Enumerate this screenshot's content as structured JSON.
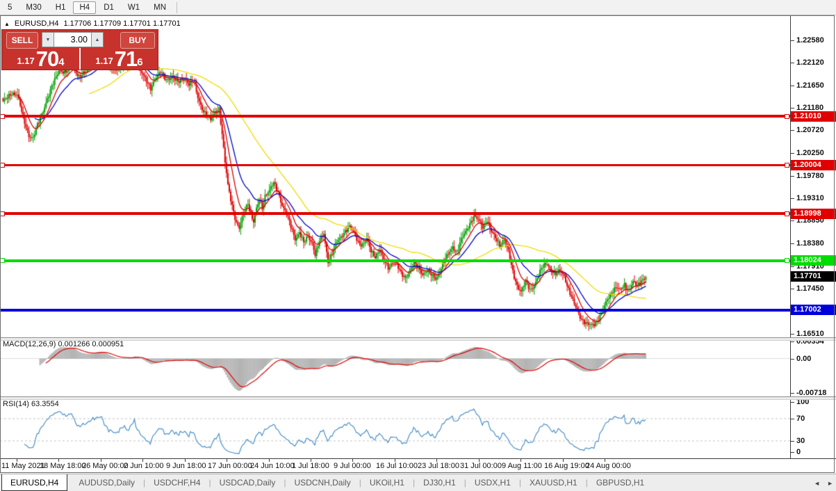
{
  "toolbar": {
    "timeframes": [
      "5",
      "M30",
      "H1",
      "H4",
      "D1",
      "W1",
      "MN"
    ],
    "active": "H4"
  },
  "chart_header": {
    "collapse_icon": "▲",
    "symbol": "EURUSD,H4",
    "ohlc": "1.17706 1.17709 1.17701 1.17701"
  },
  "trade_panel": {
    "sell_label": "SELL",
    "buy_label": "BUY",
    "volume": "3.00",
    "volume_down_icon": "▼",
    "volume_up_icon": "▲",
    "sell_small": "1.17",
    "sell_big": "70",
    "sell_sup": "4",
    "buy_small": "1.17",
    "buy_big": "71",
    "buy_sup": "6",
    "panel_color": "#c7322c"
  },
  "price_axis": {
    "ticks": [
      "1.22580",
      "1.22120",
      "1.21650",
      "1.21180",
      "1.20720",
      "1.20250",
      "1.19780",
      "1.19310",
      "1.18850",
      "1.18380",
      "1.17910",
      "1.17450",
      "1.16510"
    ]
  },
  "current_price": {
    "value": "1.17701",
    "bg": "#000000"
  },
  "time_axis": [
    "11 May 2021",
    "18 May 18:00",
    "26 May 00:00",
    "2 Jun 10:00",
    "9 Jun 18:00",
    "17 Jun 00:00",
    "24 Jun 10:00",
    "1 Jul 18:00",
    "9 Jul 00:00",
    "16 Jul 10:00",
    "23 Jul 18:00",
    "31 Jul 00:00",
    "9 Aug 11:00",
    "16 Aug 19:00",
    "24 Aug 00:00"
  ],
  "macd": {
    "label": "MACD(12,26,9) 0.001266 0.000951",
    "ticks": [
      "0.00354",
      "0.00",
      "-0.00718"
    ],
    "histogram_color": "#b4b4b4",
    "signal_color": "#e00000"
  },
  "rsi": {
    "label": "RSI(14) 63.3554",
    "ticks": [
      "100",
      "70",
      "30",
      "0"
    ],
    "levels": [
      70,
      30
    ],
    "line_color": "#4a90c8"
  },
  "tabs": {
    "items": [
      "EURUSD,H4",
      "AUDUSD,Daily",
      "USDCHF,H4",
      "USDCAD,Daily",
      "USDCNH,Daily",
      "UKOil,H1",
      "DJ30,H1",
      "USDX,H1",
      "XAUUSD,H1",
      "GBPUSD,H1"
    ],
    "active": "EURUSD,H4",
    "scroll_left": "◄",
    "scroll_right": "►"
  },
  "chart_data": {
    "type": "candlestick",
    "symbol": "EURUSD",
    "timeframe": "H4",
    "n_candles": 450,
    "y_ticks": [
      1.2258,
      1.2212,
      1.2165,
      1.2118,
      1.2072,
      1.2025,
      1.1978,
      1.1931,
      1.1885,
      1.1838,
      1.1791,
      1.1745,
      1.1651
    ],
    "y_range": [
      1.1642,
      1.2284
    ],
    "x_labels": [
      "11 May 2021",
      "18 May 18:00",
      "26 May 00:00",
      "2 Jun 10:00",
      "9 Jun 18:00",
      "17 Jun 00:00",
      "24 Jun 10:00",
      "1 Jul 18:00",
      "9 Jul 00:00",
      "16 Jul 10:00",
      "23 Jul 18:00",
      "31 Jul 00:00",
      "9 Aug 11:00",
      "16 Aug 19:00",
      "24 Aug 00:00"
    ],
    "last_price": 1.17701,
    "up_color": "#00a000",
    "down_color": "#e00000",
    "horizontal_lines": [
      {
        "price": 1.2101,
        "label": "1.21010",
        "color": "#e00000",
        "thickness": 4,
        "handles": true
      },
      {
        "price": 1.20004,
        "label": "1.20004",
        "color": "#e00000",
        "thickness": 3,
        "handles": true
      },
      {
        "price": 1.18998,
        "label": "1.18998",
        "color": "#e00000",
        "thickness": 4,
        "handles": true
      },
      {
        "price": 1.18024,
        "label": "1.18024",
        "color": "#00dc00",
        "thickness": 4,
        "handles": true
      },
      {
        "price": 1.17002,
        "label": "1.17002",
        "color": "#0000dc",
        "thickness": 4,
        "handles": false
      }
    ],
    "moving_averages": [
      {
        "type": "sma",
        "period": 60,
        "color": "#eedc00"
      },
      {
        "type": "ema",
        "period": 22,
        "color": "#0000c8"
      },
      {
        "type": "ema",
        "period": 10,
        "color": "#d40000"
      }
    ],
    "indicators": [
      {
        "name": "MACD",
        "params": [
          12,
          26,
          9
        ],
        "values": [
          0.001266,
          0.000951
        ]
      },
      {
        "name": "RSI",
        "params": [
          14
        ],
        "value": 63.3554
      }
    ],
    "close_path": [
      [
        0,
        1.213
      ],
      [
        6,
        1.215
      ],
      [
        10,
        1.2145
      ],
      [
        14,
        1.2098
      ],
      [
        18,
        1.2062
      ],
      [
        21,
        1.2055
      ],
      [
        25,
        1.209
      ],
      [
        30,
        1.213
      ],
      [
        35,
        1.2168
      ],
      [
        39,
        1.2198
      ],
      [
        44,
        1.219
      ],
      [
        48,
        1.221
      ],
      [
        53,
        1.2182
      ],
      [
        58,
        1.2192
      ],
      [
        63,
        1.2215
      ],
      [
        69,
        1.2228
      ],
      [
        74,
        1.2205
      ],
      [
        79,
        1.2192
      ],
      [
        84,
        1.2212
      ],
      [
        88,
        1.22
      ],
      [
        92,
        1.2225
      ],
      [
        96,
        1.2198
      ],
      [
        100,
        1.2172
      ],
      [
        103,
        1.2158
      ],
      [
        106,
        1.218
      ],
      [
        110,
        1.2192
      ],
      [
        114,
        1.2175
      ],
      [
        118,
        1.2185
      ],
      [
        122,
        1.217
      ],
      [
        127,
        1.218
      ],
      [
        130,
        1.2168
      ],
      [
        133,
        1.2172
      ],
      [
        136,
        1.214
      ],
      [
        139,
        1.2118
      ],
      [
        142,
        1.2102
      ],
      [
        145,
        1.2092
      ],
      [
        148,
        1.211
      ],
      [
        151,
        1.2118
      ],
      [
        153,
        1.2062
      ],
      [
        155,
        1.2005
      ],
      [
        157,
        1.1958
      ],
      [
        159,
        1.193
      ],
      [
        161,
        1.1905
      ],
      [
        163,
        1.188
      ],
      [
        165,
        1.1868
      ],
      [
        167,
        1.189
      ],
      [
        169,
        1.1908
      ],
      [
        171,
        1.1922
      ],
      [
        173,
        1.1898
      ],
      [
        175,
        1.1882
      ],
      [
        177,
        1.1908
      ],
      [
        179,
        1.1928
      ],
      [
        181,
        1.1912
      ],
      [
        183,
        1.1938
      ],
      [
        186,
        1.1948
      ],
      [
        189,
        1.1962
      ],
      [
        192,
        1.1945
      ],
      [
        195,
        1.1918
      ],
      [
        198,
        1.1898
      ],
      [
        201,
        1.1872
      ],
      [
        204,
        1.1848
      ],
      [
        207,
        1.1862
      ],
      [
        210,
        1.1838
      ],
      [
        213,
        1.1852
      ],
      [
        216,
        1.184
      ],
      [
        218,
        1.1815
      ],
      [
        221,
        1.1842
      ],
      [
        224,
        1.1858
      ],
      [
        227,
        1.1802
      ],
      [
        230,
        1.1818
      ],
      [
        233,
        1.184
      ],
      [
        236,
        1.1852
      ],
      [
        239,
        1.1865
      ],
      [
        242,
        1.1872
      ],
      [
        245,
        1.186
      ],
      [
        248,
        1.1842
      ],
      [
        251,
        1.1835
      ],
      [
        254,
        1.1845
      ],
      [
        257,
        1.1822
      ],
      [
        260,
        1.1812
      ],
      [
        263,
        1.1825
      ],
      [
        266,
        1.1802
      ],
      [
        269,
        1.1788
      ],
      [
        272,
        1.18
      ],
      [
        275,
        1.1792
      ],
      [
        278,
        1.1775
      ],
      [
        281,
        1.1768
      ],
      [
        284,
        1.1782
      ],
      [
        287,
        1.1795
      ],
      [
        290,
        1.1788
      ],
      [
        293,
        1.1775
      ],
      [
        296,
        1.1782
      ],
      [
        299,
        1.1772
      ],
      [
        302,
        1.1765
      ],
      [
        305,
        1.1782
      ],
      [
        308,
        1.18
      ],
      [
        311,
        1.1815
      ],
      [
        314,
        1.1832
      ],
      [
        317,
        1.182
      ],
      [
        320,
        1.1845
      ],
      [
        323,
        1.1862
      ],
      [
        326,
        1.188
      ],
      [
        329,
        1.1895
      ],
      [
        332,
        1.1885
      ],
      [
        335,
        1.1872
      ],
      [
        338,
        1.1888
      ],
      [
        341,
        1.1862
      ],
      [
        344,
        1.1848
      ],
      [
        347,
        1.1835
      ],
      [
        350,
        1.1848
      ],
      [
        353,
        1.182
      ],
      [
        356,
        1.1778
      ],
      [
        359,
        1.1752
      ],
      [
        362,
        1.1738
      ],
      [
        365,
        1.1758
      ],
      [
        368,
        1.1742
      ],
      [
        371,
        1.1752
      ],
      [
        374,
        1.1772
      ],
      [
        377,
        1.179
      ],
      [
        380,
        1.1798
      ],
      [
        383,
        1.1782
      ],
      [
        386,
        1.1772
      ],
      [
        389,
        1.1782
      ],
      [
        392,
        1.1772
      ],
      [
        395,
        1.1742
      ],
      [
        398,
        1.1718
      ],
      [
        401,
        1.17
      ],
      [
        404,
        1.1682
      ],
      [
        407,
        1.1672
      ],
      [
        410,
        1.1668
      ],
      [
        413,
        1.1672
      ],
      [
        416,
        1.1682
      ],
      [
        419,
        1.17
      ],
      [
        422,
        1.1722
      ],
      [
        425,
        1.1738
      ],
      [
        428,
        1.1748
      ],
      [
        431,
        1.174
      ],
      [
        434,
        1.1752
      ],
      [
        437,
        1.1742
      ],
      [
        440,
        1.1758
      ],
      [
        443,
        1.1748
      ],
      [
        446,
        1.1762
      ],
      [
        449,
        1.177
      ]
    ]
  }
}
